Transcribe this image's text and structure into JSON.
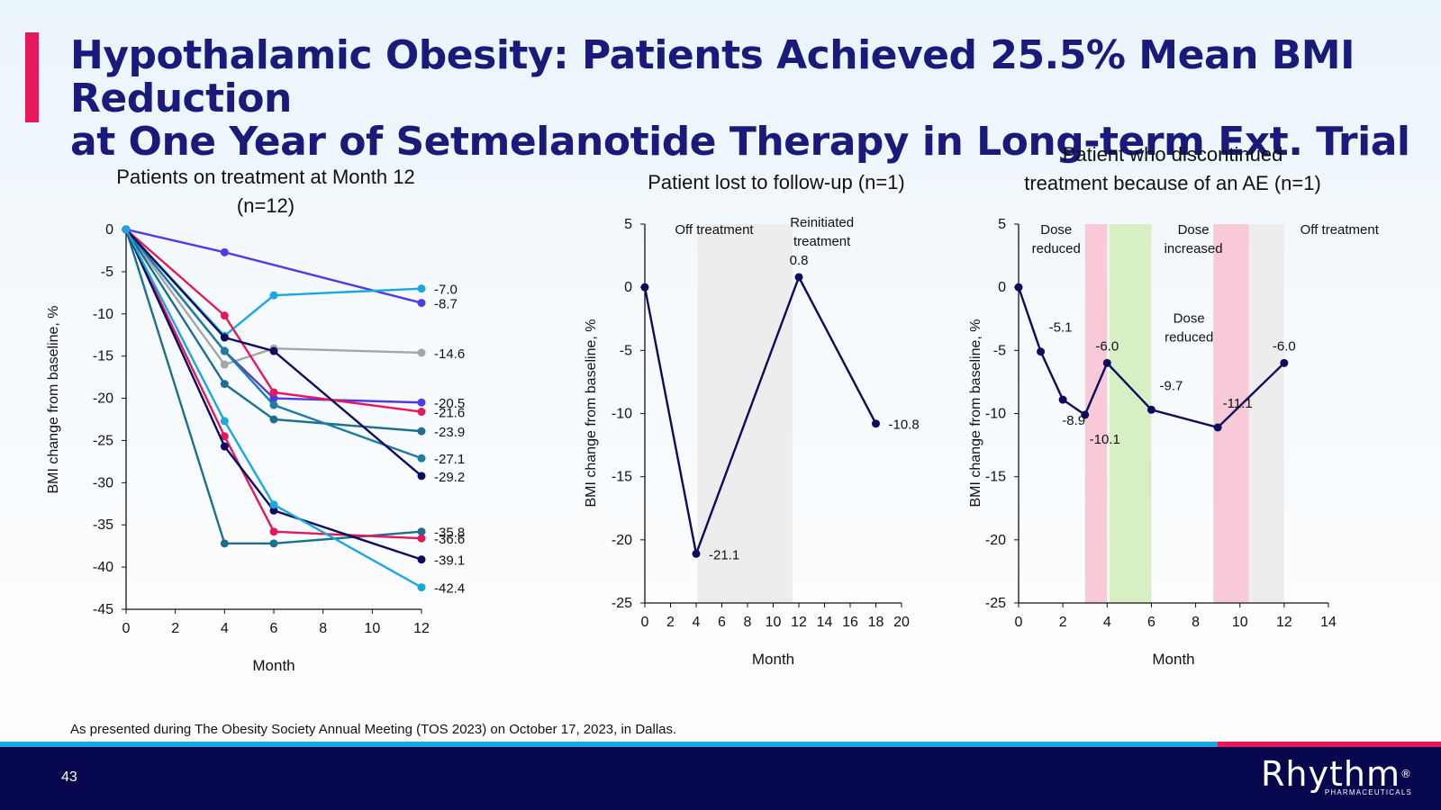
{
  "slide": {
    "title_line1": "Hypothalamic Obesity: Patients Achieved 25.5% Mean BMI Reduction",
    "title_line2": "at One Year of Setmelanotide Therapy in Long-term Ext. Trial",
    "footnote": "As presented during The Obesity Society Annual Meeting (TOS 2023) on October 17, 2023, in Dallas.",
    "page_number": "43",
    "logo_text": "Rhythm",
    "logo_reg": "®",
    "logo_subtext": "PHARMACEUTICALS",
    "colors": {
      "accent": "#e5195a",
      "title": "#1a1a7a",
      "footer": "#07074d",
      "stripe": "#1aa7e0"
    }
  },
  "chart_data": [
    {
      "type": "line",
      "title_lines": [
        "Patients on treatment at Month 12",
        "(n=12)"
      ],
      "xlabel": "Month",
      "ylabel": "BMI change from baseline, %",
      "xlim": [
        0,
        12
      ],
      "ylim": [
        -45,
        0
      ],
      "xticks": [
        0,
        2,
        4,
        6,
        8,
        10,
        12
      ],
      "yticks": [
        0,
        -5,
        -10,
        -15,
        -20,
        -25,
        -30,
        -35,
        -40,
        -45
      ],
      "series": [
        {
          "color": "#4f3ae8",
          "x": [
            0,
            4,
            12
          ],
          "y": [
            0,
            -2.7,
            -8.7
          ],
          "end_label": "-8.7"
        },
        {
          "color": "#1aa7e0",
          "x": [
            0,
            4,
            6,
            12
          ],
          "y": [
            0,
            -12.6,
            -7.8,
            -7.0
          ],
          "end_label": "-7.0"
        },
        {
          "color": "#a6a6a6",
          "x": [
            0,
            4,
            6,
            12
          ],
          "y": [
            0,
            -16.0,
            -14.1,
            -14.6
          ],
          "end_label": "-14.6"
        },
        {
          "color": "#4f3ae8",
          "x": [
            0,
            4,
            6,
            12
          ],
          "y": [
            0,
            -14.4,
            -20.0,
            -20.5
          ],
          "end_label": "-20.5"
        },
        {
          "color": "#e5195a",
          "x": [
            0,
            4,
            6,
            12
          ],
          "y": [
            0,
            -10.2,
            -19.3,
            -21.6
          ],
          "end_label": "-21.6"
        },
        {
          "color": "#1c6f8e",
          "x": [
            0,
            4,
            6,
            12
          ],
          "y": [
            0,
            -18.3,
            -22.5,
            -23.9
          ],
          "end_label": "-23.9"
        },
        {
          "color": "#1c7fa0",
          "x": [
            0,
            4,
            6,
            12
          ],
          "y": [
            0,
            -14.4,
            -20.8,
            -27.1
          ],
          "end_label": "-27.1"
        },
        {
          "color": "#0d0b5e",
          "x": [
            0,
            4,
            6,
            12
          ],
          "y": [
            0,
            -12.8,
            -14.4,
            -29.2
          ],
          "end_label": "-29.2"
        },
        {
          "color": "#1c6f8e",
          "x": [
            0,
            4,
            6,
            12
          ],
          "y": [
            0,
            -37.2,
            -37.2,
            -35.8
          ],
          "end_label": "-35.8"
        },
        {
          "color": "#e5195a",
          "x": [
            0,
            4,
            6,
            12
          ],
          "y": [
            0,
            -24.5,
            -35.8,
            -36.6
          ],
          "end_label": "-36.6"
        },
        {
          "color": "#0d0b5e",
          "x": [
            0,
            4,
            6,
            12
          ],
          "y": [
            0,
            -25.7,
            -33.3,
            -39.1
          ],
          "end_label": "-39.1"
        },
        {
          "color": "#1aa7e0",
          "x": [
            0,
            4,
            6,
            12
          ],
          "y": [
            0,
            -22.7,
            -32.6,
            -42.4
          ],
          "end_label": "-42.4"
        }
      ]
    },
    {
      "type": "line",
      "title_lines": [
        "Patient lost to follow-up (n=1)"
      ],
      "xlabel": "Month",
      "ylabel": "BMI change from baseline, %",
      "xlim": [
        0,
        20
      ],
      "ylim": [
        -25,
        5
      ],
      "xticks": [
        0,
        2,
        4,
        6,
        8,
        10,
        12,
        14,
        16,
        18,
        20
      ],
      "yticks": [
        5,
        0,
        -5,
        -10,
        -15,
        -20,
        -25
      ],
      "bands": [
        {
          "x0": 4.1,
          "x1": 11.5,
          "color": "#ededed"
        }
      ],
      "annotations": [
        {
          "lines": [
            "Off treatment"
          ],
          "x": 5.4,
          "y": 4.2
        },
        {
          "lines": [
            "Reinitiated",
            "treatment"
          ],
          "x": 13.8,
          "y": 4.8
        }
      ],
      "series": [
        {
          "color": "#0d0b5e",
          "x": [
            0,
            4,
            12,
            18
          ],
          "y": [
            0,
            -21.1,
            0.8,
            -10.8
          ],
          "labels": [
            "",
            "-21.1",
            "0.8",
            "-10.8"
          ],
          "label_pos": [
            "",
            "right",
            "top",
            "right"
          ]
        }
      ]
    },
    {
      "type": "line",
      "title_lines": [
        "Patient who discontinued",
        "treatment because of an AE (n=1)"
      ],
      "xlabel": "Month",
      "ylabel": "BMI change from baseline, %",
      "xlim": [
        0,
        14
      ],
      "ylim": [
        -25,
        5
      ],
      "xticks": [
        0,
        2,
        4,
        6,
        8,
        10,
        12,
        14
      ],
      "yticks": [
        5,
        0,
        -5,
        -10,
        -15,
        -20,
        -25
      ],
      "bands": [
        {
          "x0": 3.0,
          "x1": 4.0,
          "color": "#f8cad8"
        },
        {
          "x0": 4.1,
          "x1": 6.0,
          "color": "#d8efc4"
        },
        {
          "x0": 8.8,
          "x1": 10.4,
          "color": "#f8cad8"
        },
        {
          "x0": 10.4,
          "x1": 12.0,
          "color": "#ededed"
        }
      ],
      "annotations": [
        {
          "lines": [
            "Dose",
            "reduced"
          ],
          "x": 1.7,
          "y": 4.2
        },
        {
          "lines": [
            "Dose",
            "increased"
          ],
          "x": 7.9,
          "y": 4.2
        },
        {
          "lines": [
            "Dose",
            "reduced"
          ],
          "x": 7.7,
          "y": -2.8
        },
        {
          "lines": [
            "Off treatment"
          ],
          "x": 14.5,
          "y": 4.2
        }
      ],
      "series": [
        {
          "color": "#0d0b5e",
          "x": [
            0,
            1,
            2,
            3,
            4,
            6,
            9,
            12
          ],
          "y": [
            0,
            -5.1,
            -8.9,
            -10.1,
            -6.0,
            -9.7,
            -11.1,
            -6.0
          ],
          "labels": [
            "",
            "-5.1",
            "-8.9",
            "-10.1",
            "-6.0",
            "-9.7",
            "-11.1",
            "-6.0"
          ],
          "label_pos": [
            "",
            "upright",
            "below",
            "belowright",
            "top",
            "upright",
            "upright",
            "top"
          ]
        }
      ]
    }
  ]
}
